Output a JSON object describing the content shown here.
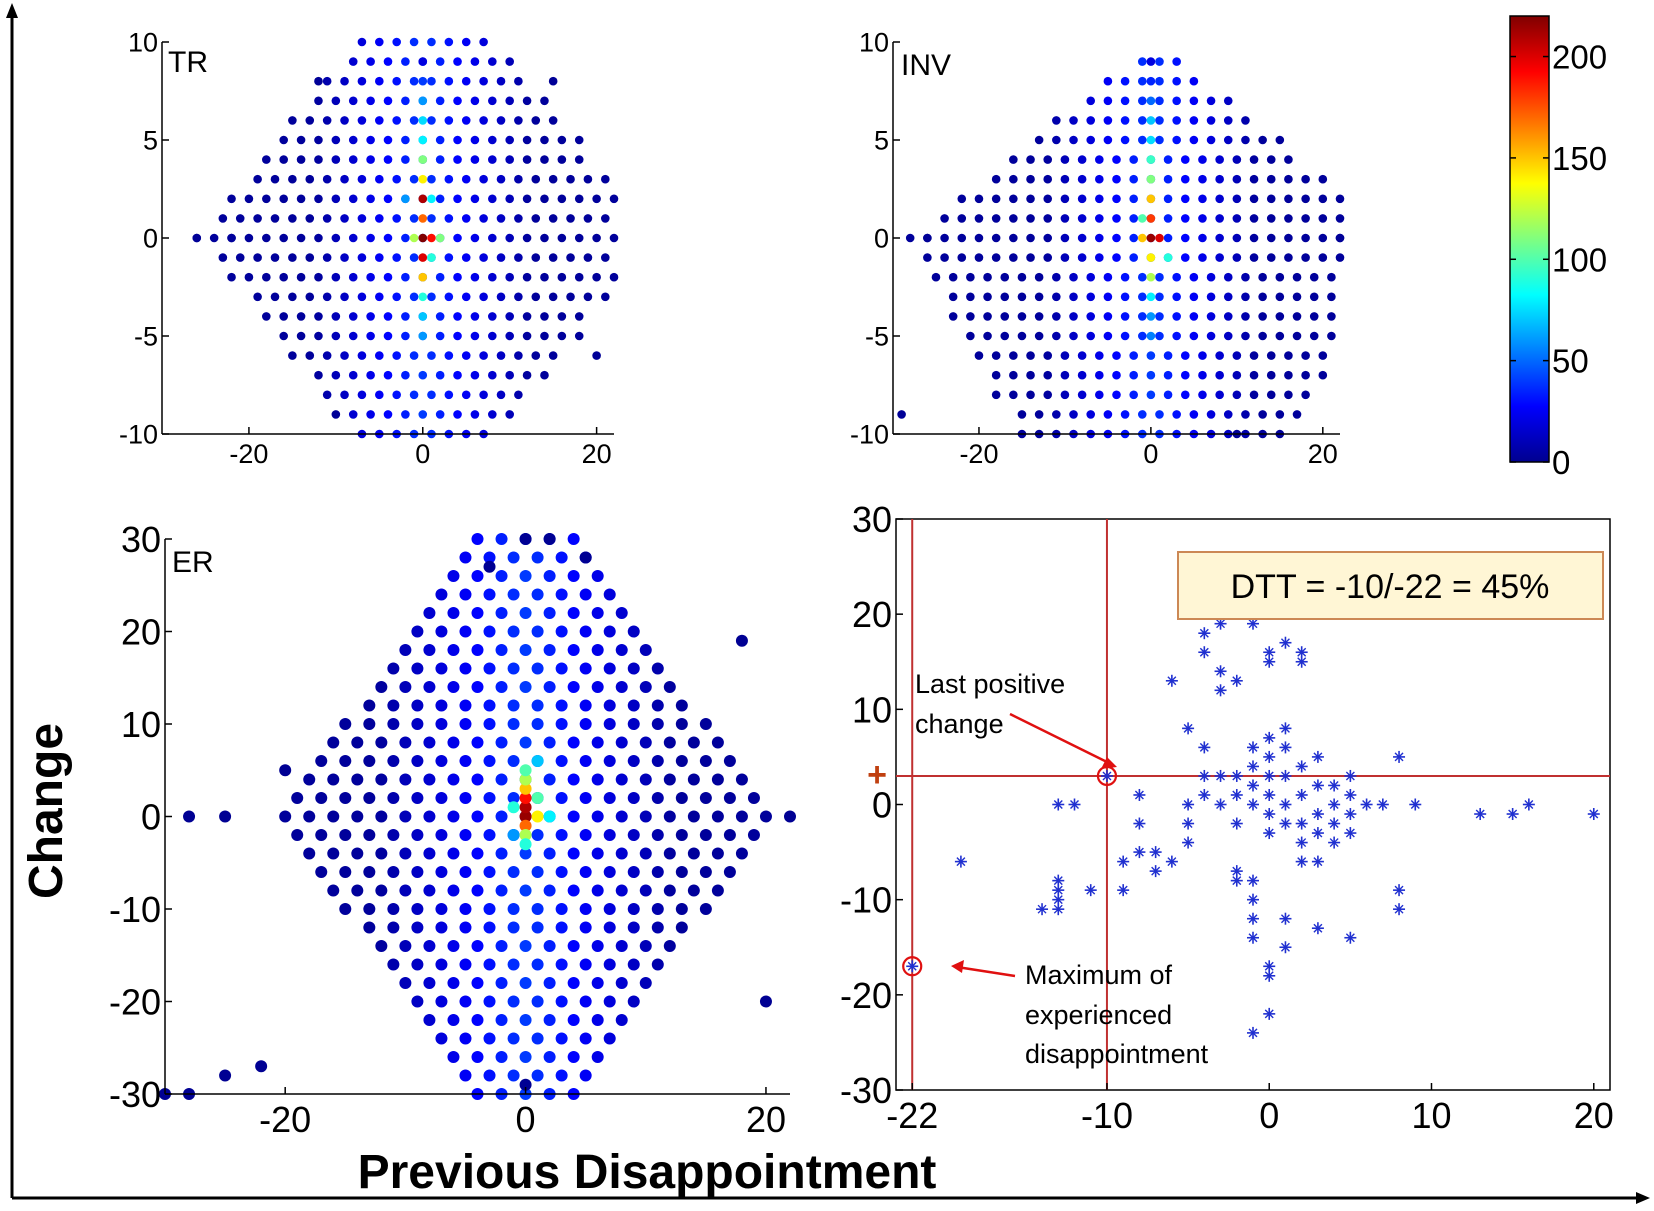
{
  "figure": {
    "xlabel": "Previous Disappointment",
    "ylabel": "Change"
  },
  "chart_data": [
    {
      "type": "scatter",
      "panel": "TR",
      "title": "TR",
      "xlim": [
        -30,
        22
      ],
      "ylim": [
        -10,
        10
      ],
      "xticks": [
        "-20",
        "0",
        "20"
      ],
      "yticks": [
        "10",
        "5",
        "0",
        "-5",
        "-10"
      ],
      "color_encoding": "point count (colorbar)",
      "points": [
        {
          "x": 0,
          "y": 9,
          "count": 20
        },
        {
          "x": 0,
          "y": 8,
          "count": 40
        },
        {
          "x": 0,
          "y": 7,
          "count": 60
        },
        {
          "x": 0,
          "y": 6,
          "count": 75
        },
        {
          "x": 0,
          "y": 5,
          "count": 80
        },
        {
          "x": 0,
          "y": 4,
          "count": 110
        },
        {
          "x": 0,
          "y": 3,
          "count": 140
        },
        {
          "x": 0,
          "y": 2,
          "count": 210
        },
        {
          "x": 0,
          "y": 1,
          "count": 170
        },
        {
          "x": 0,
          "y": 0,
          "count": 220
        },
        {
          "x": 0,
          "y": -1,
          "count": 200
        },
        {
          "x": 0,
          "y": -2,
          "count": 150
        },
        {
          "x": 0,
          "y": -3,
          "count": 90
        },
        {
          "x": 0,
          "y": -4,
          "count": 70
        },
        {
          "x": 0,
          "y": -5,
          "count": 60
        },
        {
          "x": 1,
          "y": 0,
          "count": 190
        },
        {
          "x": -1,
          "y": 0,
          "count": 120
        },
        {
          "x": 2,
          "y": 0,
          "count": 110
        },
        {
          "x": -2,
          "y": 2,
          "count": 60
        },
        {
          "x": 1,
          "y": 2,
          "count": 80
        },
        {
          "x": 1,
          "y": -1,
          "count": 90
        },
        {
          "x": -22,
          "y": 0,
          "count": 3
        },
        {
          "x": -26,
          "y": 0,
          "count": 2
        },
        {
          "x": 20,
          "y": -6,
          "count": 2
        },
        {
          "x": -12,
          "y": 8,
          "count": 2
        },
        {
          "x": 15,
          "y": 8,
          "count": 2
        },
        {
          "x": -10,
          "y": -9,
          "count": 2
        }
      ]
    },
    {
      "type": "scatter",
      "panel": "INV",
      "title": "INV",
      "xlim": [
        -30,
        22
      ],
      "ylim": [
        -10,
        10
      ],
      "xticks": [
        "-20",
        "0",
        "20"
      ],
      "yticks": [
        "10",
        "5",
        "0",
        "-5",
        "-10"
      ],
      "color_encoding": "point count (colorbar)",
      "points": [
        {
          "x": 0,
          "y": 9,
          "count": 20
        },
        {
          "x": 0,
          "y": 8,
          "count": 35
        },
        {
          "x": 0,
          "y": 7,
          "count": 50
        },
        {
          "x": 0,
          "y": 6,
          "count": 70
        },
        {
          "x": 0,
          "y": 5,
          "count": 75
        },
        {
          "x": 0,
          "y": 4,
          "count": 95
        },
        {
          "x": 0,
          "y": 3,
          "count": 110
        },
        {
          "x": 0,
          "y": 2,
          "count": 150
        },
        {
          "x": 0,
          "y": 1,
          "count": 180
        },
        {
          "x": 0,
          "y": 0,
          "count": 215
        },
        {
          "x": 0,
          "y": -1,
          "count": 140
        },
        {
          "x": 0,
          "y": -2,
          "count": 120
        },
        {
          "x": 0,
          "y": -3,
          "count": 80
        },
        {
          "x": 0,
          "y": -4,
          "count": 60
        },
        {
          "x": 0,
          "y": -5,
          "count": 55
        },
        {
          "x": 1,
          "y": 0,
          "count": 200
        },
        {
          "x": -1,
          "y": 0,
          "count": 150
        },
        {
          "x": -1,
          "y": 1,
          "count": 100
        },
        {
          "x": 2,
          "y": -1,
          "count": 90
        },
        {
          "x": -29,
          "y": -9,
          "count": 2
        },
        {
          "x": 22,
          "y": 0,
          "count": 2
        },
        {
          "x": 10,
          "y": -10,
          "count": 2
        },
        {
          "x": -26,
          "y": 0,
          "count": 2
        }
      ]
    },
    {
      "type": "scatter",
      "panel": "ER",
      "title": "ER",
      "xlim": [
        -30,
        22
      ],
      "ylim": [
        -30,
        30
      ],
      "xticks": [
        "-20",
        "0",
        "20"
      ],
      "yticks": [
        "30",
        "20",
        "10",
        "0",
        "-10",
        "-20",
        "-30"
      ],
      "color_encoding": "point count (colorbar)",
      "points": [
        {
          "x": 0,
          "y": 0,
          "count": 215
        },
        {
          "x": 0,
          "y": 1,
          "count": 210
        },
        {
          "x": 0,
          "y": 2,
          "count": 190
        },
        {
          "x": 0,
          "y": 3,
          "count": 150
        },
        {
          "x": 0,
          "y": 4,
          "count": 120
        },
        {
          "x": 0,
          "y": 5,
          "count": 100
        },
        {
          "x": 0,
          "y": -1,
          "count": 170
        },
        {
          "x": 0,
          "y": -2,
          "count": 120
        },
        {
          "x": 0,
          "y": -3,
          "count": 90
        },
        {
          "x": 1,
          "y": 0,
          "count": 140
        },
        {
          "x": 1,
          "y": 2,
          "count": 100
        },
        {
          "x": 2,
          "y": 0,
          "count": 80
        },
        {
          "x": -1,
          "y": 1,
          "count": 90
        },
        {
          "x": 1,
          "y": 6,
          "count": 70
        },
        {
          "x": -1,
          "y": -2,
          "count": 60
        },
        {
          "x": -30,
          "y": -30,
          "count": 1
        },
        {
          "x": -28,
          "y": -30,
          "count": 1
        },
        {
          "x": -25,
          "y": -28,
          "count": 1
        },
        {
          "x": -22,
          "y": -27,
          "count": 1
        },
        {
          "x": -28,
          "y": 0,
          "count": 1
        },
        {
          "x": -25,
          "y": 0,
          "count": 1
        },
        {
          "x": 22,
          "y": 0,
          "count": 1
        },
        {
          "x": 0,
          "y": 30,
          "count": 1
        },
        {
          "x": 2,
          "y": 30,
          "count": 1
        },
        {
          "x": 5,
          "y": 28,
          "count": 1
        },
        {
          "x": -3,
          "y": 27,
          "count": 1
        },
        {
          "x": 18,
          "y": 19,
          "count": 1
        },
        {
          "x": 20,
          "y": -20,
          "count": 1
        },
        {
          "x": 0,
          "y": -29,
          "count": 1
        },
        {
          "x": -20,
          "y": 5,
          "count": 1
        }
      ]
    },
    {
      "type": "scatter",
      "panel": "individual",
      "title": "",
      "xlim": [
        -23,
        21
      ],
      "ylim": [
        -30,
        30
      ],
      "xticks": [
        "-22",
        "-10",
        "0",
        "10",
        "20"
      ],
      "yticks": [
        "30",
        "20",
        "10",
        "0",
        "-10",
        "-20",
        "-30"
      ],
      "reference_lines": {
        "vertical": [
          -22,
          -10
        ],
        "horizontal": 3
      },
      "y_marker": "+",
      "highlighted_points": [
        {
          "x": -10,
          "y": 3,
          "label": "Last positive change"
        },
        {
          "x": -22,
          "y": -17,
          "label": "Maximum of experienced disappointment"
        }
      ],
      "textbox": "DTT = -10/-22 = 45%",
      "points": [
        {
          "x": -10,
          "y": 3
        },
        {
          "x": -22,
          "y": -17
        },
        {
          "x": -19,
          "y": -6
        },
        {
          "x": -14,
          "y": -11
        },
        {
          "x": -13,
          "y": -8
        },
        {
          "x": -13,
          "y": -9
        },
        {
          "x": -13,
          "y": -10
        },
        {
          "x": -13,
          "y": -11
        },
        {
          "x": -12,
          "y": 0
        },
        {
          "x": -13,
          "y": 0
        },
        {
          "x": -11,
          "y": -9
        },
        {
          "x": -9,
          "y": -6
        },
        {
          "x": -9,
          "y": -9
        },
        {
          "x": -8,
          "y": 1
        },
        {
          "x": -8,
          "y": -2
        },
        {
          "x": -8,
          "y": -5
        },
        {
          "x": -7,
          "y": -5
        },
        {
          "x": -7,
          "y": -7
        },
        {
          "x": -6,
          "y": -6
        },
        {
          "x": -6,
          "y": 13
        },
        {
          "x": -5,
          "y": 8
        },
        {
          "x": -5,
          "y": 0
        },
        {
          "x": -5,
          "y": -2
        },
        {
          "x": -5,
          "y": -4
        },
        {
          "x": -4,
          "y": 18
        },
        {
          "x": -4,
          "y": 16
        },
        {
          "x": -4,
          "y": 6
        },
        {
          "x": -4,
          "y": 3
        },
        {
          "x": -4,
          "y": 1
        },
        {
          "x": -3,
          "y": 19
        },
        {
          "x": -3,
          "y": 14
        },
        {
          "x": -3,
          "y": 12
        },
        {
          "x": -3,
          "y": 3
        },
        {
          "x": -3,
          "y": 0
        },
        {
          "x": -2,
          "y": 13
        },
        {
          "x": -2,
          "y": 3
        },
        {
          "x": -2,
          "y": 1
        },
        {
          "x": -2,
          "y": -2
        },
        {
          "x": -2,
          "y": -7
        },
        {
          "x": -2,
          "y": -8
        },
        {
          "x": -1,
          "y": 19
        },
        {
          "x": -1,
          "y": 6
        },
        {
          "x": -1,
          "y": 4
        },
        {
          "x": -1,
          "y": 2
        },
        {
          "x": -1,
          "y": 0
        },
        {
          "x": -1,
          "y": -8
        },
        {
          "x": -1,
          "y": -10
        },
        {
          "x": -1,
          "y": -12
        },
        {
          "x": -1,
          "y": -14
        },
        {
          "x": -1,
          "y": -24
        },
        {
          "x": 0,
          "y": 7
        },
        {
          "x": 0,
          "y": 5
        },
        {
          "x": 0,
          "y": 3
        },
        {
          "x": 0,
          "y": 1
        },
        {
          "x": 0,
          "y": -1
        },
        {
          "x": 0,
          "y": -3
        },
        {
          "x": 0,
          "y": -17
        },
        {
          "x": 0,
          "y": -18
        },
        {
          "x": 0,
          "y": -22
        },
        {
          "x": 0,
          "y": 15
        },
        {
          "x": 0,
          "y": 16
        },
        {
          "x": 1,
          "y": 17
        },
        {
          "x": 1,
          "y": 8
        },
        {
          "x": 1,
          "y": 6
        },
        {
          "x": 1,
          "y": 3
        },
        {
          "x": 1,
          "y": 0
        },
        {
          "x": 1,
          "y": -2
        },
        {
          "x": 1,
          "y": -12
        },
        {
          "x": 1,
          "y": -15
        },
        {
          "x": 2,
          "y": 16
        },
        {
          "x": 2,
          "y": 15
        },
        {
          "x": 2,
          "y": 4
        },
        {
          "x": 2,
          "y": 1
        },
        {
          "x": 2,
          "y": -2
        },
        {
          "x": 2,
          "y": -4
        },
        {
          "x": 2,
          "y": -6
        },
        {
          "x": 3,
          "y": 5
        },
        {
          "x": 3,
          "y": 2
        },
        {
          "x": 3,
          "y": -1
        },
        {
          "x": 3,
          "y": -3
        },
        {
          "x": 3,
          "y": -6
        },
        {
          "x": 3,
          "y": -13
        },
        {
          "x": 4,
          "y": 2
        },
        {
          "x": 4,
          "y": 0
        },
        {
          "x": 4,
          "y": -2
        },
        {
          "x": 4,
          "y": -4
        },
        {
          "x": 5,
          "y": 3
        },
        {
          "x": 5,
          "y": 1
        },
        {
          "x": 5,
          "y": -1
        },
        {
          "x": 5,
          "y": -3
        },
        {
          "x": 5,
          "y": -14
        },
        {
          "x": 6,
          "y": 0
        },
        {
          "x": 7,
          "y": 0
        },
        {
          "x": 8,
          "y": 5
        },
        {
          "x": 8,
          "y": -9
        },
        {
          "x": 8,
          "y": -11
        },
        {
          "x": 9,
          "y": 0
        },
        {
          "x": 13,
          "y": -1
        },
        {
          "x": 15,
          "y": -1
        },
        {
          "x": 16,
          "y": 0
        },
        {
          "x": 20,
          "y": -1
        }
      ]
    }
  ],
  "colorbar": {
    "range": [
      0,
      220
    ],
    "ticks": [
      "200",
      "150",
      "100",
      "50",
      "0"
    ]
  },
  "panel4_annotations": {
    "last_positive_line1": "Last positive",
    "last_positive_line2": "change",
    "max_line1": "Maximum of",
    "max_line2": "experienced",
    "max_line3": "disappointment",
    "plus_marker": "+"
  }
}
